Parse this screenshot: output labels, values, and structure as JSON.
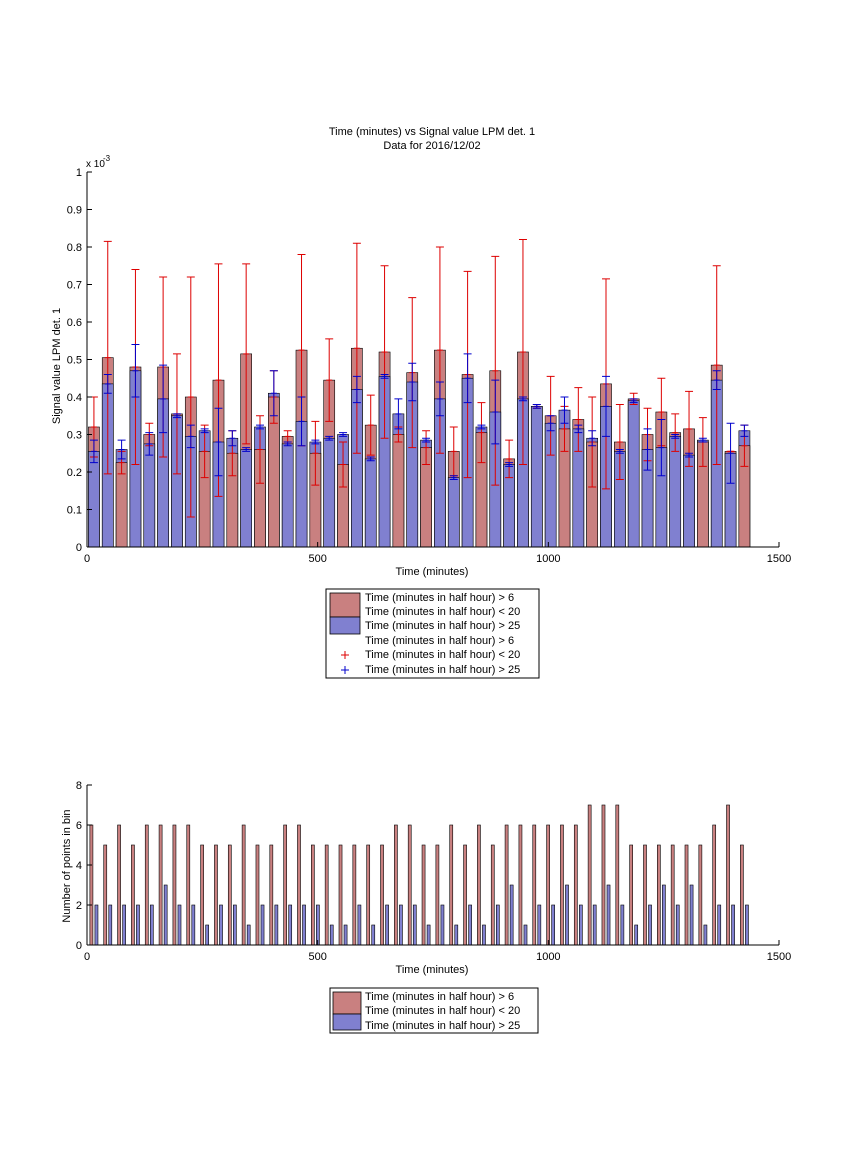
{
  "chart_data": [
    {
      "type": "bar",
      "title": "Time (minutes) vs Signal value LPM det. 1",
      "subtitle": "Data for 2016/12/02",
      "xlabel": "Time (minutes)",
      "ylabel": "Signal value LPM det. 1",
      "y_exponent_label": "x 10",
      "y_exponent_power": "-3",
      "xlim": [
        0,
        1500
      ],
      "ylim": [
        0,
        1
      ],
      "x_ticks": [
        "0",
        "500",
        "1000",
        "1500"
      ],
      "y_ticks": [
        "0",
        "0.1",
        "0.2",
        "0.3",
        "0.4",
        "0.5",
        "0.6",
        "0.7",
        "0.8",
        "0.9",
        "1"
      ],
      "grid": false,
      "legend_placement": "below",
      "legend": [
        "Time (minutes in half hour) > 6",
        "Time (minutes in half hour) < 20",
        "Time (minutes in half hour) > 25",
        "Time (minutes in half hour) > 6",
        "Time (minutes in half hour) < 20",
        "Time (minutes in half hour) > 25"
      ],
      "colors": {
        "red_bar": "#c98080",
        "blue_bar": "#8080d0",
        "red_err": "#dd0000",
        "blue_err": "#0000cc"
      },
      "x": [
        15,
        45,
        75,
        105,
        135,
        165,
        195,
        225,
        255,
        285,
        315,
        345,
        375,
        405,
        435,
        465,
        495,
        525,
        555,
        585,
        615,
        645,
        675,
        705,
        735,
        765,
        795,
        825,
        855,
        885,
        915,
        945,
        975,
        1005,
        1035,
        1065,
        1095,
        1125,
        1155,
        1185,
        1215,
        1245,
        1275,
        1305,
        1335,
        1365,
        1395,
        1425
      ],
      "series": [
        {
          "name": "Time (minutes in half hour) > 6",
          "values": [
            0.32,
            0.505,
            0.225,
            0.48,
            0.3,
            0.48,
            0.355,
            0.4,
            0.255,
            0.445,
            0.25,
            0.515,
            0.26,
            0.4,
            0.295,
            0.525,
            0.25,
            0.445,
            0.22,
            0.53,
            0.325,
            0.52,
            0.3,
            0.465,
            0.265,
            0.525,
            0.255,
            0.46,
            0.305,
            0.47,
            0.235,
            0.52,
            0.375,
            0.35,
            0.315,
            0.34,
            0.28,
            0.435,
            0.28,
            0.395,
            0.3,
            0.36,
            0.305,
            0.315,
            0.28,
            0.485,
            0.255,
            0.27
          ],
          "error": [
            0.08,
            0.31,
            0.03,
            0.26,
            0.03,
            0.24,
            0.16,
            0.32,
            0.07,
            0.31,
            0.06,
            0.24,
            0.09,
            0.07,
            0.015,
            0.255,
            0.085,
            0.11,
            0.06,
            0.28,
            0.08,
            0.23,
            0.02,
            0.2,
            0.045,
            0.275,
            0.065,
            0.275,
            0.08,
            0.305,
            0.05,
            0.3,
            0.005,
            0.105,
            0.06,
            0.085,
            0.12,
            0.28,
            0.1,
            0.015,
            0.07,
            0.09,
            0.05,
            0.1,
            0.065,
            0.265,
            0.0,
            0.055
          ]
        },
        {
          "name": "Time (minutes in half hour) > 25",
          "values": [
            0.255,
            0.435,
            0.26,
            0.47,
            0.275,
            0.395,
            0.35,
            0.295,
            0.31,
            0.28,
            0.29,
            0.26,
            0.32,
            0.41,
            0.275,
            0.335,
            0.28,
            0.29,
            0.3,
            0.42,
            0.235,
            0.455,
            0.355,
            0.44,
            0.285,
            0.395,
            0.185,
            0.45,
            0.32,
            0.36,
            0.22,
            0.395,
            0.375,
            0.33,
            0.365,
            0.315,
            0.29,
            0.375,
            0.255,
            0.39,
            0.26,
            0.265,
            0.295,
            0.245,
            0.285,
            0.445,
            0.25,
            0.31
          ],
          "error": [
            0.03,
            0.025,
            0.025,
            0.07,
            0.03,
            0.09,
            0.005,
            0.03,
            0.005,
            0.09,
            0.02,
            0.005,
            0.005,
            0.06,
            0.005,
            0.065,
            0.005,
            0.005,
            0.005,
            0.035,
            0.005,
            0.005,
            0.04,
            0.05,
            0.005,
            0.045,
            0.005,
            0.065,
            0.005,
            0.085,
            0.005,
            0.005,
            0.005,
            0.02,
            0.035,
            0.01,
            0.02,
            0.08,
            0.005,
            0.005,
            0.055,
            0.075,
            0.005,
            0.005,
            0.005,
            0.025,
            0.08,
            0.015
          ]
        }
      ]
    },
    {
      "type": "bar",
      "xlabel": "Time (minutes)",
      "ylabel": "Number of points in bin",
      "xlim": [
        0,
        1500
      ],
      "ylim": [
        0,
        8
      ],
      "x_ticks": [
        "0",
        "500",
        "1000",
        "1500"
      ],
      "y_ticks": [
        "0",
        "2",
        "4",
        "6",
        "8"
      ],
      "grid": false,
      "legend_placement": "below",
      "legend": [
        "Time (minutes in half hour) > 6",
        "Time (minutes in half hour) < 20",
        "Time (minutes in half hour) > 25"
      ],
      "x": [
        15,
        45,
        75,
        105,
        135,
        165,
        195,
        225,
        255,
        285,
        315,
        345,
        375,
        405,
        435,
        465,
        495,
        525,
        555,
        585,
        615,
        645,
        675,
        705,
        735,
        765,
        795,
        825,
        855,
        885,
        915,
        945,
        975,
        1005,
        1035,
        1065,
        1095,
        1125,
        1155,
        1185,
        1215,
        1245,
        1275,
        1305,
        1335,
        1365,
        1395,
        1425
      ],
      "series": [
        {
          "name": "Time (minutes in half hour) > 6",
          "values": [
            6,
            5,
            6,
            5,
            6,
            6,
            6,
            6,
            5,
            5,
            5,
            6,
            5,
            5,
            6,
            6,
            5,
            5,
            5,
            5,
            5,
            5,
            6,
            6,
            5,
            5,
            6,
            5,
            6,
            5,
            6,
            6,
            6,
            6,
            6,
            6,
            7,
            7,
            7,
            5,
            5,
            5,
            5,
            5,
            5,
            6,
            7,
            5
          ]
        },
        {
          "name": "Time (minutes in half hour) > 25",
          "values": [
            2,
            2,
            2,
            2,
            2,
            3,
            2,
            2,
            1,
            2,
            2,
            1,
            2,
            2,
            2,
            2,
            2,
            1,
            1,
            2,
            1,
            2,
            2,
            2,
            1,
            2,
            1,
            2,
            1,
            2,
            3,
            1,
            2,
            2,
            3,
            2,
            2,
            3,
            2,
            1,
            2,
            3,
            2,
            3,
            1,
            2,
            2,
            2
          ]
        }
      ]
    }
  ]
}
